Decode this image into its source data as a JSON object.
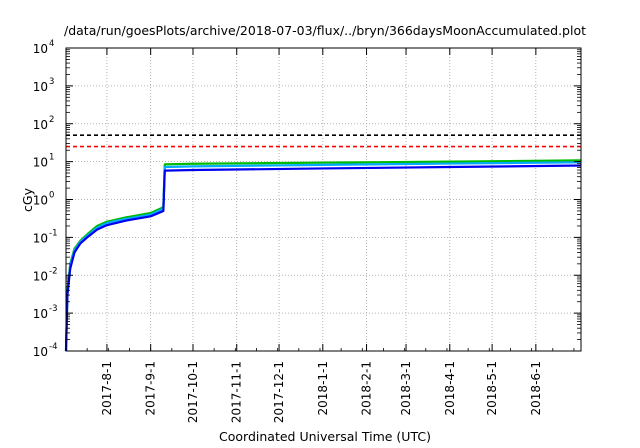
{
  "chart_data": {
    "type": "line",
    "title": "/data/run/goesPlots/archive/2018-07-03/flux/../bryn/366daysMoonAccumulated.plot",
    "xlabel": "Coordinated Universal Time (UTC)",
    "ylabel": "cGy",
    "x_scale": "time",
    "y_scale": "log",
    "xlim": [
      "2017-07-03",
      "2018-07-03"
    ],
    "ylim": [
      0.0001,
      10000
    ],
    "x_ticks": [
      "2017-8-1",
      "2017-9-1",
      "2017-10-1",
      "2017-11-1",
      "2017-12-1",
      "2018-1-1",
      "2018-2-1",
      "2018-3-1",
      "2018-4-1",
      "2018-5-1",
      "2018-6-1"
    ],
    "y_ticks": [
      {
        "base": "10",
        "exp": "-4",
        "value": 0.0001
      },
      {
        "base": "10",
        "exp": "-3",
        "value": 0.001
      },
      {
        "base": "10",
        "exp": "-2",
        "value": 0.01
      },
      {
        "base": "10",
        "exp": "-1",
        "value": 0.1
      },
      {
        "base": "10",
        "exp": "0",
        "value": 1
      },
      {
        "base": "10",
        "exp": "1",
        "value": 10
      },
      {
        "base": "10",
        "exp": "2",
        "value": 100
      },
      {
        "base": "10",
        "exp": "3",
        "value": 1000
      },
      {
        "base": "10",
        "exp": "4",
        "value": 10000
      }
    ],
    "grid": true,
    "reference_lines": [
      {
        "value": 50,
        "color": "#000000",
        "style": "dashed"
      },
      {
        "value": 25,
        "color": "#ff0000",
        "style": "dashed"
      }
    ],
    "series": [
      {
        "color": "#00bb00",
        "x": [
          "2017-07-03",
          "2017-07-04",
          "2017-07-06",
          "2017-07-09",
          "2017-07-13",
          "2017-07-18",
          "2017-07-25",
          "2017-08-01",
          "2017-08-15",
          "2017-09-01",
          "2017-09-09",
          "2017-09-10",
          "2017-09-11",
          "2017-10-01",
          "2018-01-01",
          "2018-04-01",
          "2018-07-03"
        ],
        "y": [
          0.0001,
          0.004,
          0.02,
          0.05,
          0.08,
          0.12,
          0.2,
          0.26,
          0.34,
          0.44,
          0.6,
          0.65,
          8.5,
          8.8,
          9.4,
          10.0,
          10.8
        ]
      },
      {
        "color": "#00aaff",
        "x": [
          "2017-07-03",
          "2017-07-04",
          "2017-07-06",
          "2017-07-09",
          "2017-07-13",
          "2017-07-18",
          "2017-07-25",
          "2017-08-01",
          "2017-08-15",
          "2017-09-01",
          "2017-09-09",
          "2017-09-10",
          "2017-09-11",
          "2017-10-01",
          "2018-01-01",
          "2018-04-01",
          "2018-07-03"
        ],
        "y": [
          0.0001,
          0.0035,
          0.018,
          0.045,
          0.075,
          0.11,
          0.18,
          0.24,
          0.31,
          0.4,
          0.55,
          0.58,
          7.2,
          7.5,
          8.2,
          8.9,
          9.6
        ]
      },
      {
        "color": "#0000ee",
        "x": [
          "2017-07-03",
          "2017-07-04",
          "2017-07-06",
          "2017-07-09",
          "2017-07-13",
          "2017-07-18",
          "2017-07-25",
          "2017-08-01",
          "2017-08-15",
          "2017-09-01",
          "2017-09-09",
          "2017-09-10",
          "2017-09-11",
          "2017-10-01",
          "2018-01-01",
          "2018-04-01",
          "2018-07-03"
        ],
        "y": [
          0.0001,
          0.003,
          0.015,
          0.04,
          0.068,
          0.1,
          0.16,
          0.21,
          0.28,
          0.36,
          0.48,
          0.5,
          5.8,
          6.0,
          6.6,
          7.2,
          7.9
        ]
      }
    ]
  }
}
